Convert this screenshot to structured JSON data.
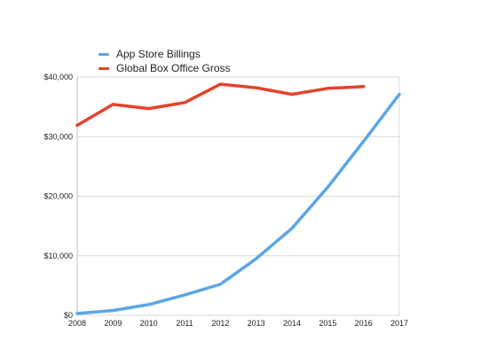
{
  "chart_data": {
    "type": "line",
    "title": "",
    "xlabel": "",
    "ylabel": "",
    "x": [
      2008,
      2009,
      2010,
      2011,
      2012,
      2013,
      2014,
      2015,
      2016,
      2017
    ],
    "x_tick_labels": [
      "2008",
      "2009",
      "2010",
      "2011",
      "2012",
      "2013",
      "2014",
      "2015",
      "2016",
      "2017"
    ],
    "ylim": [
      0,
      40000
    ],
    "y_ticks": [
      0,
      10000,
      20000,
      30000,
      40000
    ],
    "y_tick_labels": [
      "$0",
      "$10,000",
      "$20,000",
      "$30,000",
      "$40,000"
    ],
    "grid": true,
    "legend_position": "top-left",
    "series": [
      {
        "name": "App Store Billings",
        "color": "#5aa6e6",
        "values": [
          300,
          800,
          1800,
          3400,
          5200,
          9500,
          14600,
          21500,
          29200,
          37100
        ]
      },
      {
        "name": "Global Box Office Gross",
        "color": "#e4432d",
        "values": [
          31900,
          35400,
          34700,
          35700,
          38800,
          38200,
          37100,
          38100,
          38400,
          null
        ]
      }
    ]
  }
}
